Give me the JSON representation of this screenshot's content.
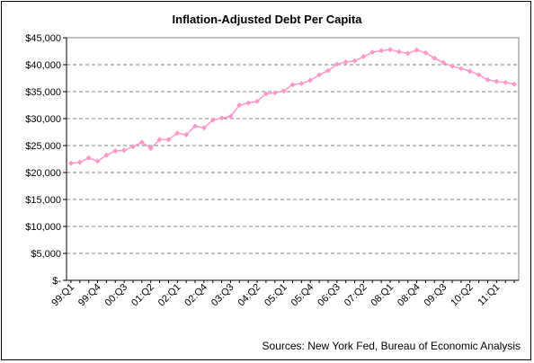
{
  "chart_data": {
    "type": "line",
    "title": "Inflation-Adjusted Debt Per Capita",
    "xlabel": "",
    "ylabel": "",
    "ylim": [
      0,
      45000
    ],
    "y_ticks": [
      "$-",
      "$5,000",
      "$10,000",
      "$15,000",
      "$20,000",
      "$25,000",
      "$30,000",
      "$35,000",
      "$40,000",
      "$45,000"
    ],
    "x_tick_labels": [
      "99:Q1",
      "99:Q4",
      "00:Q3",
      "01:Q2",
      "02:Q1",
      "02:Q4",
      "03:Q3",
      "04:Q2",
      "05:Q1",
      "05:Q4",
      "06:Q3",
      "07:Q2",
      "08:Q1",
      "08:Q4",
      "09:Q3",
      "10:Q2",
      "11:Q1"
    ],
    "x": [
      "99:Q1",
      "99:Q2",
      "99:Q3",
      "99:Q4",
      "00:Q1",
      "00:Q2",
      "00:Q3",
      "00:Q4",
      "01:Q1",
      "01:Q2",
      "01:Q3",
      "01:Q4",
      "02:Q1",
      "02:Q2",
      "02:Q3",
      "02:Q4",
      "03:Q1",
      "03:Q2",
      "03:Q3",
      "03:Q4",
      "04:Q1",
      "04:Q2",
      "04:Q3",
      "04:Q4",
      "05:Q1",
      "05:Q2",
      "05:Q3",
      "05:Q4",
      "06:Q1",
      "06:Q2",
      "06:Q3",
      "06:Q4",
      "07:Q1",
      "07:Q2",
      "07:Q3",
      "07:Q4",
      "08:Q1",
      "08:Q2",
      "08:Q3",
      "08:Q4",
      "09:Q1",
      "09:Q2",
      "09:Q3",
      "09:Q4",
      "10:Q1",
      "10:Q2",
      "10:Q3",
      "10:Q4",
      "11:Q1",
      "11:Q2",
      "11:Q3"
    ],
    "series": [
      {
        "name": "",
        "color": "#ff99cc",
        "values": [
          21700,
          21900,
          22700,
          22100,
          23200,
          24000,
          24100,
          24800,
          25600,
          24500,
          26100,
          26100,
          27300,
          27000,
          28600,
          28300,
          29700,
          30100,
          30400,
          32500,
          32900,
          33200,
          34600,
          34800,
          35100,
          36300,
          36500,
          37100,
          38100,
          38900,
          40100,
          40500,
          40700,
          41500,
          42300,
          42600,
          42800,
          42400,
          42100,
          42700,
          42200,
          41200,
          40400,
          39700,
          39300,
          38800,
          38100,
          37200,
          36900,
          36700,
          36400
        ]
      }
    ],
    "grid": "horizontal-dashed",
    "legend": "none",
    "source": "Sources:  New York Fed, Bureau of Economic Analysis"
  }
}
